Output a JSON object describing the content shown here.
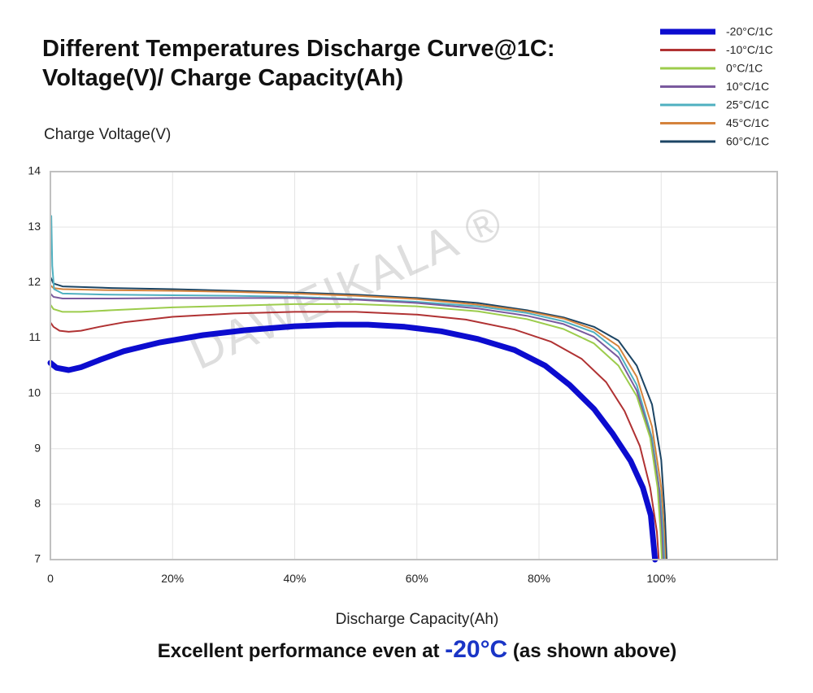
{
  "header": {
    "title_line1": "Different Temperatures Discharge Curve@1C:",
    "title_line2": "Voltage(V)/ Charge Capacity(Ah)"
  },
  "watermark": "DAWEIKALA ®",
  "footer": {
    "prefix": "Excellent performance even at ",
    "highlight": "-20°C",
    "suffix": " (as shown above)",
    "highlight_color": "#1a35c6"
  },
  "chart_data": {
    "type": "line",
    "xlabel": "Discharge Capacity(Ah)",
    "ylabel": "Charge Voltage(V)",
    "xlim": [
      0,
      119
    ],
    "ylim": [
      7,
      14
    ],
    "x_ticks": [
      0,
      20,
      40,
      60,
      80,
      100
    ],
    "x_tick_labels": [
      "0",
      "20%",
      "40%",
      "60%",
      "80%",
      "100%"
    ],
    "y_ticks": [
      7,
      8,
      9,
      10,
      11,
      12,
      13,
      14
    ],
    "grid": true,
    "legend_position": "top-right",
    "series": [
      {
        "name": "-20°C/1C",
        "color": "#0c0ccf",
        "width": 7,
        "points": [
          [
            0,
            10.55
          ],
          [
            1,
            10.46
          ],
          [
            3,
            10.42
          ],
          [
            5,
            10.47
          ],
          [
            8,
            10.6
          ],
          [
            12,
            10.76
          ],
          [
            18,
            10.92
          ],
          [
            25,
            11.05
          ],
          [
            32,
            11.14
          ],
          [
            40,
            11.21
          ],
          [
            47,
            11.24
          ],
          [
            52,
            11.24
          ],
          [
            58,
            11.2
          ],
          [
            64,
            11.12
          ],
          [
            70,
            10.98
          ],
          [
            76,
            10.78
          ],
          [
            81,
            10.5
          ],
          [
            85,
            10.15
          ],
          [
            89,
            9.72
          ],
          [
            92,
            9.28
          ],
          [
            95,
            8.78
          ],
          [
            97,
            8.3
          ],
          [
            98.3,
            7.8
          ],
          [
            99,
            7.0
          ]
        ]
      },
      {
        "name": "-10°C/1C",
        "color": "#b03233",
        "width": 2,
        "points": [
          [
            0,
            11.28
          ],
          [
            0.5,
            11.2
          ],
          [
            1.5,
            11.13
          ],
          [
            3,
            11.11
          ],
          [
            5,
            11.13
          ],
          [
            8,
            11.2
          ],
          [
            12,
            11.28
          ],
          [
            20,
            11.38
          ],
          [
            30,
            11.44
          ],
          [
            40,
            11.47
          ],
          [
            50,
            11.47
          ],
          [
            60,
            11.42
          ],
          [
            68,
            11.33
          ],
          [
            76,
            11.15
          ],
          [
            82,
            10.93
          ],
          [
            87,
            10.62
          ],
          [
            91,
            10.2
          ],
          [
            94,
            9.68
          ],
          [
            96.5,
            9.05
          ],
          [
            98.2,
            8.3
          ],
          [
            99.3,
            7.5
          ],
          [
            99.6,
            7.0
          ]
        ]
      },
      {
        "name": "0°C/1C",
        "color": "#9ccc4c",
        "width": 2,
        "points": [
          [
            0,
            11.6
          ],
          [
            0.5,
            11.52
          ],
          [
            2,
            11.47
          ],
          [
            5,
            11.47
          ],
          [
            10,
            11.5
          ],
          [
            20,
            11.55
          ],
          [
            30,
            11.58
          ],
          [
            40,
            11.61
          ],
          [
            50,
            11.61
          ],
          [
            60,
            11.57
          ],
          [
            70,
            11.48
          ],
          [
            78,
            11.34
          ],
          [
            84,
            11.16
          ],
          [
            89,
            10.9
          ],
          [
            93,
            10.5
          ],
          [
            96,
            9.95
          ],
          [
            98.2,
            9.2
          ],
          [
            99.4,
            8.3
          ],
          [
            99.9,
            7.5
          ],
          [
            100.1,
            7.0
          ]
        ]
      },
      {
        "name": "10°C/1C",
        "color": "#7a5a9e",
        "width": 2,
        "points": [
          [
            0,
            11.8
          ],
          [
            0.5,
            11.74
          ],
          [
            2,
            11.71
          ],
          [
            10,
            11.71
          ],
          [
            20,
            11.72
          ],
          [
            30,
            11.72
          ],
          [
            40,
            11.72
          ],
          [
            50,
            11.69
          ],
          [
            60,
            11.63
          ],
          [
            70,
            11.53
          ],
          [
            78,
            11.4
          ],
          [
            84,
            11.25
          ],
          [
            89,
            11.02
          ],
          [
            93,
            10.65
          ],
          [
            96,
            10.05
          ],
          [
            98.3,
            9.2
          ],
          [
            99.6,
            8.3
          ],
          [
            100.1,
            7.5
          ],
          [
            100.3,
            7.0
          ]
        ]
      },
      {
        "name": "25°C/1C",
        "color": "#4fb0c0",
        "width": 2,
        "points": [
          [
            0,
            13.2
          ],
          [
            0.15,
            13.2
          ],
          [
            0.3,
            12.3
          ],
          [
            0.6,
            11.88
          ],
          [
            2,
            11.8
          ],
          [
            10,
            11.78
          ],
          [
            20,
            11.77
          ],
          [
            30,
            11.76
          ],
          [
            40,
            11.74
          ],
          [
            50,
            11.7
          ],
          [
            60,
            11.65
          ],
          [
            70,
            11.57
          ],
          [
            78,
            11.45
          ],
          [
            84,
            11.3
          ],
          [
            89,
            11.1
          ],
          [
            93,
            10.75
          ],
          [
            96,
            10.15
          ],
          [
            98.5,
            9.2
          ],
          [
            99.8,
            8.2
          ],
          [
            100.3,
            7.5
          ],
          [
            100.5,
            7.0
          ]
        ]
      },
      {
        "name": "45°C/1C",
        "color": "#d5833c",
        "width": 2,
        "points": [
          [
            0,
            11.95
          ],
          [
            0.5,
            11.9
          ],
          [
            2,
            11.88
          ],
          [
            10,
            11.86
          ],
          [
            20,
            11.85
          ],
          [
            30,
            11.83
          ],
          [
            40,
            11.8
          ],
          [
            50,
            11.76
          ],
          [
            60,
            11.7
          ],
          [
            70,
            11.6
          ],
          [
            78,
            11.48
          ],
          [
            84,
            11.35
          ],
          [
            89,
            11.15
          ],
          [
            93,
            10.85
          ],
          [
            96,
            10.3
          ],
          [
            98.5,
            9.4
          ],
          [
            100,
            8.3
          ],
          [
            100.5,
            7.5
          ],
          [
            100.7,
            7.0
          ]
        ]
      },
      {
        "name": "60°C/1C",
        "color": "#1c4564",
        "width": 2,
        "points": [
          [
            0,
            12.1
          ],
          [
            0.5,
            11.98
          ],
          [
            2,
            11.93
          ],
          [
            10,
            11.9
          ],
          [
            20,
            11.88
          ],
          [
            30,
            11.85
          ],
          [
            40,
            11.82
          ],
          [
            50,
            11.78
          ],
          [
            60,
            11.72
          ],
          [
            70,
            11.63
          ],
          [
            78,
            11.5
          ],
          [
            84,
            11.37
          ],
          [
            89,
            11.2
          ],
          [
            93,
            10.95
          ],
          [
            96,
            10.5
          ],
          [
            98.5,
            9.8
          ],
          [
            100,
            8.8
          ],
          [
            100.6,
            7.8
          ],
          [
            100.9,
            7.0
          ]
        ]
      }
    ]
  }
}
